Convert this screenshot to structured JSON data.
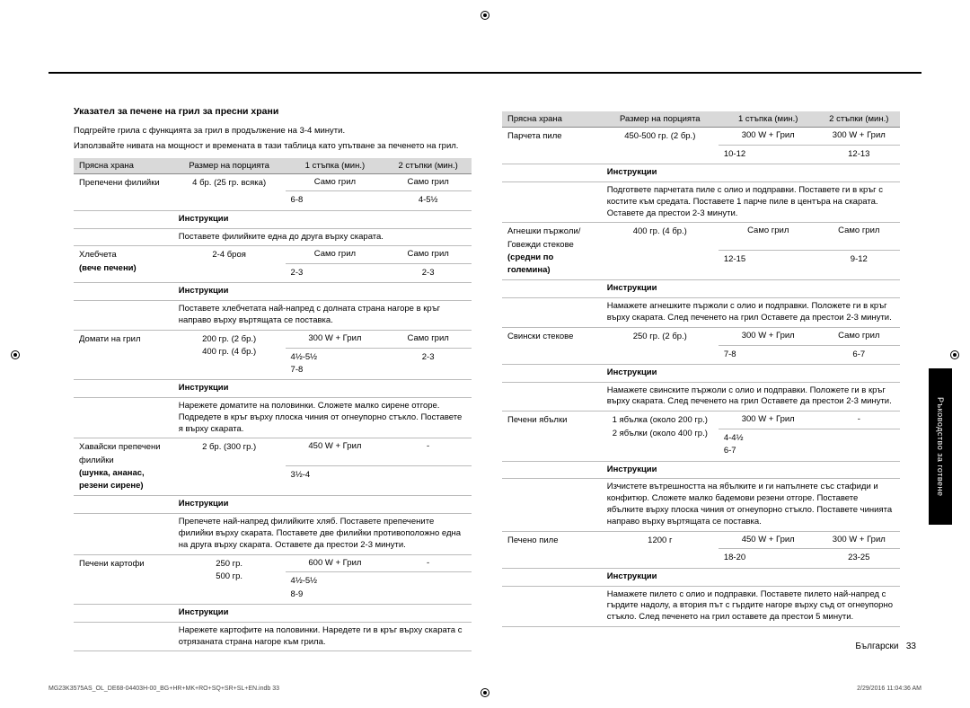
{
  "sideTab": "Ръководство за готвене",
  "heading": "Указател за печене на грил за пресни храни",
  "intro1": "Подгрейте грила с функцията за грил в продължение на 3-4 минути.",
  "intro2": "Използвайте нивата на мощност и времената в тази таблица като упътване за печенето на грил.",
  "colHeaders": {
    "c1": "Прясна храна",
    "c2": "Размер на порцията",
    "c3": "1 стъпка (мин.)",
    "c4": "2 стъпки (мин.)"
  },
  "instrLabel": "Инструкции",
  "left": [
    {
      "name": "Препечени филийки",
      "portion": "4 бр. (25 гр. всяка)",
      "s1a": "Само грил",
      "s1b": "6-8",
      "s2a": "Само грил",
      "s2b": "4-5½",
      "instr": "Поставете филийките една до друга върху скарата."
    },
    {
      "name": "Хлебчета",
      "sub": "(вече печени)",
      "portion": "2-4 броя",
      "s1a": "Само грил",
      "s1b": "2-3",
      "s2a": "Само грил",
      "s2b": "2-3",
      "instr": "Поставете хлебчетата най-напред с долната страна нагоре в кръг направо върху въртящата се поставка."
    },
    {
      "name": "Домати на грил",
      "portion": "200 гр. (2 бр.)\n400 гр. (4 бр.)",
      "s1a": "300 W + Грил",
      "s1b": "4½-5½\n7-8",
      "s2a": "Само грил",
      "s2b": "2-3",
      "instr": "Нарежете доматите на половинки. Сложете малко сирене отгоре. Подредете в кръг върху плоска чиния от огнеупорно стъкло. Поставете я върху скарата."
    },
    {
      "name": "Хавайски препечени филийки",
      "sub": "(шунка, ананас, резени сирене)",
      "portion": "2 бр. (300 гр.)",
      "s1a": "450 W + Грил",
      "s1b": "3½-4",
      "s2a": "-",
      "s2b": "",
      "instr": "Препечете най-напред филийките хляб. Поставете препечените филийки върху скарата. Поставете две филийки противоположно една на друга върху скарата. Оставете да престои 2-3 минути."
    },
    {
      "name": "Печени картофи",
      "portion": "250 гр.\n500 гр.",
      "s1a": "600 W + Грил",
      "s1b": "4½-5½\n8-9",
      "s2a": "-",
      "s2b": "",
      "instr": "Нарежете картофите на половинки. Наредете ги в кръг върху скарата с отрязаната страна нагоре към грила."
    }
  ],
  "right": [
    {
      "name": "Парчета пиле",
      "portion": "450-500 гр. (2 бр.)",
      "s1a": "300 W + Грил",
      "s1b": "10-12",
      "s2a": "300 W + Грил",
      "s2b": "12-13",
      "instr": "Подгответе парчетата пиле с олио и подправки. Поставете ги в кръг с костите към средата. Поставете 1 парче пиле в центъра на скарата. Оставете да престои 2-3 минути."
    },
    {
      "name": "Агнешки пържоли/ Говежди стекове",
      "sub": "(средни по големина)",
      "portion": "400 гр. (4 бр.)",
      "s1a": "Само грил",
      "s1b": "12-15",
      "s2a": "Само грил",
      "s2b": "9-12",
      "instr": "Намажете агнешките пържоли с олио и подправки. Положете ги в кръг върху скарата. След печенето на грил Оставете да престои 2-3 минути."
    },
    {
      "name": "Свински стекове",
      "portion": "250 гр. (2 бр.)",
      "s1a": "300 W + Грил",
      "s1b": "7-8",
      "s2a": "Само грил",
      "s2b": "6-7",
      "instr": "Намажете свинските пържоли с олио и подправки. Положете ги в кръг върху скарата. След печенето на грил Оставете да престои 2-3 минути."
    },
    {
      "name": "Печени ябълки",
      "portion": "1 ябълка (около 200 гр.)\n2 ябълки (около 400 гр.)",
      "s1a": "300 W + Грил",
      "s1b": "4-4½\n6-7",
      "s2a": "-",
      "s2b": "",
      "instr": "Изчистете вътрешността на ябълките и ги напълнете със стафиди и конфитюр. Сложете малко бадемови резени отгоре. Поставете ябълките върху плоска чиния от огнеупорно стъкло. Поставете чинията направо върху въртящата се поставка."
    },
    {
      "name": "Печено пиле",
      "portion": "1200 г",
      "s1a": "450 W + Грил",
      "s1b": "18-20",
      "s2a": "300 W + Грил",
      "s2b": "23-25",
      "instr": "Намажете пилето с олио и подправки. Поставете пилето най-напред с гърдите надолу, а втория път с гърдите нагоре върху съд от огнеупорно стъкло. След печенето на грил оставете да престои 5 минути."
    }
  ],
  "pageNum": {
    "lang": "Български",
    "num": "33"
  },
  "footer": {
    "left": "MG23K3575AS_OL_DE68-04403H-00_BG+HR+MK+RO+SQ+SR+SL+EN.indb   33",
    "right": "2/29/2016   11:04:36 AM"
  }
}
